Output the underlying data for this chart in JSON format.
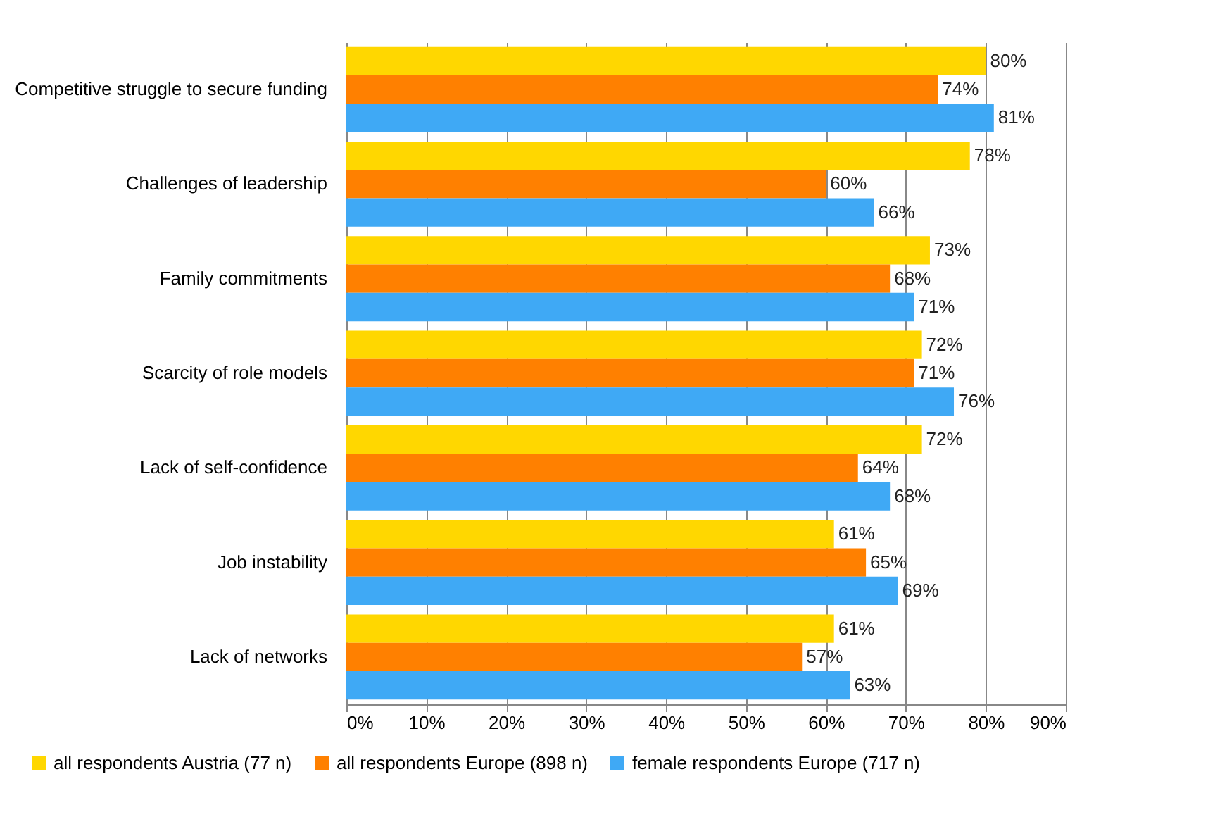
{
  "chart_data": {
    "type": "bar",
    "orientation": "horizontal",
    "categories": [
      "Competitive struggle to secure funding",
      "Challenges of leadership",
      "Family commitments",
      "Scarcity of role models",
      "Lack of self-confidence",
      "Job instability",
      "Lack of networks"
    ],
    "series": [
      {
        "name": "all respondents Austria (77 n)",
        "color": "#ffd700",
        "values": [
          80,
          78,
          73,
          72,
          72,
          61,
          61
        ],
        "value_labels": [
          "80%",
          "78%",
          "73%",
          "72%",
          "72%",
          "61%",
          "61%"
        ]
      },
      {
        "name": "all respondents Europe (898 n)",
        "color": "#ff8000",
        "values": [
          74,
          60,
          68,
          71,
          64,
          65,
          57
        ],
        "value_labels": [
          "74%",
          "60%",
          "68%",
          "71%",
          "64%",
          "65%",
          "57%"
        ]
      },
      {
        "name": "female respondents Europe (717 n)",
        "color": "#3fa9f5",
        "values": [
          81,
          66,
          71,
          76,
          68,
          69,
          63
        ],
        "value_labels": [
          "81%",
          "66%",
          "71%",
          "76%",
          "68%",
          "69%",
          "63%"
        ]
      }
    ],
    "xlim": [
      0,
      90
    ],
    "xticks": [
      {
        "value": 0,
        "label": "0%"
      },
      {
        "value": 10,
        "label": "10%"
      },
      {
        "value": 20,
        "label": "20%"
      },
      {
        "value": 30,
        "label": "30%"
      },
      {
        "value": 40,
        "label": "40%"
      },
      {
        "value": 50,
        "label": "50%"
      },
      {
        "value": 60,
        "label": "60%"
      },
      {
        "value": 70,
        "label": "70%"
      },
      {
        "value": 80,
        "label": "80%"
      },
      {
        "value": 90,
        "label": "90%"
      }
    ],
    "grid": "x",
    "legend": "bottom"
  }
}
